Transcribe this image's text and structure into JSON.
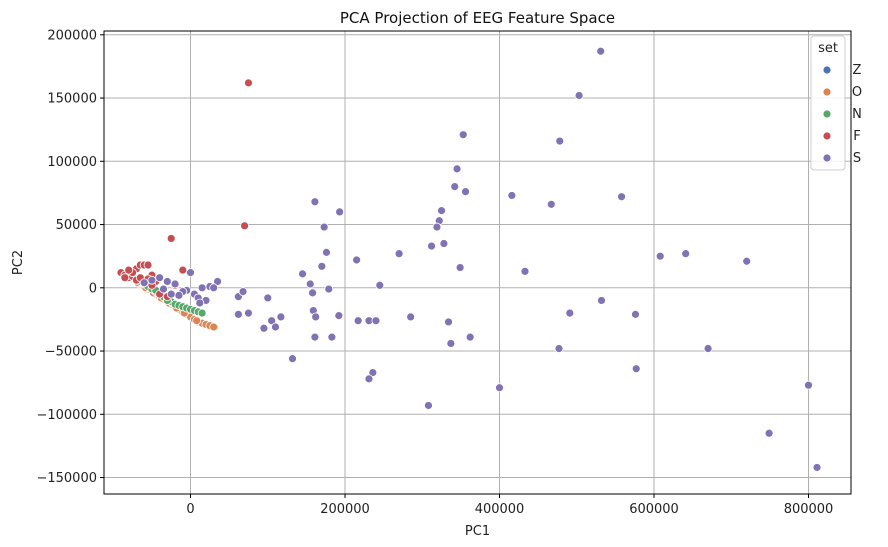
{
  "chart_data": {
    "type": "scatter",
    "title": "PCA Projection of EEG Feature Space",
    "xlabel": "PC1",
    "ylabel": "PC2",
    "xlim": [
      -112000,
      855000
    ],
    "ylim": [
      -163000,
      203000
    ],
    "xticks": [
      0,
      200000,
      400000,
      600000,
      800000
    ],
    "xtick_labels": [
      "0",
      "200000",
      "400000",
      "600000",
      "800000"
    ],
    "yticks": [
      -150000,
      -100000,
      -50000,
      0,
      50000,
      100000,
      150000,
      200000
    ],
    "ytick_labels": [
      "−150000",
      "−100000",
      "−50000",
      "0",
      "50000",
      "100000",
      "150000",
      "200000"
    ],
    "grid": true,
    "legend": {
      "title": "set",
      "placement": "top-right"
    },
    "series": [
      {
        "name": "Z",
        "color": "#4c72b0",
        "points": [
          [
            -60000,
            2000
          ],
          [
            -50000,
            0
          ],
          [
            -45000,
            -3000
          ],
          [
            -40000,
            -5000
          ],
          [
            -35000,
            -7000
          ],
          [
            -30000,
            -9000
          ],
          [
            -25000,
            -11000
          ],
          [
            -20000,
            -13000
          ],
          [
            -15000,
            -15000
          ],
          [
            -10000,
            -17000
          ],
          [
            -5000,
            -20000
          ],
          [
            0,
            -23000
          ],
          [
            5000,
            -21000
          ],
          [
            -55000,
            3000
          ],
          [
            -48000,
            1000
          ]
        ]
      },
      {
        "name": "O",
        "color": "#dd8452",
        "points": [
          [
            -85000,
            11000
          ],
          [
            -80000,
            9000
          ],
          [
            -75000,
            7000
          ],
          [
            -70000,
            5000
          ],
          [
            -65000,
            3000
          ],
          [
            -60000,
            1000
          ],
          [
            -55000,
            -1000
          ],
          [
            -50000,
            -3000
          ],
          [
            -45000,
            -5000
          ],
          [
            -40000,
            -7000
          ],
          [
            -35000,
            -9000
          ],
          [
            -30000,
            -11000
          ],
          [
            -25000,
            -13000
          ],
          [
            -20000,
            -15000
          ],
          [
            -15000,
            -17000
          ],
          [
            -10000,
            -19000
          ],
          [
            -5000,
            -21000
          ],
          [
            0,
            -23000
          ],
          [
            5000,
            -25000
          ],
          [
            10000,
            -27000
          ],
          [
            15000,
            -28000
          ],
          [
            20000,
            -29000
          ],
          [
            25000,
            -30000
          ],
          [
            30000,
            -31000
          ],
          [
            -78000,
            8000
          ],
          [
            -68000,
            4000
          ],
          [
            -58000,
            0
          ],
          [
            -48000,
            -4000
          ],
          [
            -38000,
            -8000
          ],
          [
            -28000,
            -12000
          ],
          [
            -18000,
            -16000
          ],
          [
            -8000,
            -20000
          ],
          [
            8000,
            -26000
          ]
        ]
      },
      {
        "name": "N",
        "color": "#55a868",
        "points": [
          [
            -65000,
            5000
          ],
          [
            -60000,
            3000
          ],
          [
            -55000,
            1000
          ],
          [
            -50000,
            -1000
          ],
          [
            -45000,
            -3000
          ],
          [
            -40000,
            -5000
          ],
          [
            -35000,
            -7000
          ],
          [
            -30000,
            -9000
          ],
          [
            -25000,
            -11000
          ],
          [
            -20000,
            -13000
          ],
          [
            -15000,
            -14000
          ],
          [
            -10000,
            -15000
          ],
          [
            -5000,
            -16000
          ],
          [
            0,
            -17000
          ],
          [
            5000,
            -18000
          ],
          [
            10000,
            -19000
          ],
          [
            15000,
            -20000
          ],
          [
            -45000,
            -2000
          ],
          [
            -30000,
            -10000
          ]
        ]
      },
      {
        "name": "F",
        "color": "#c44e52",
        "points": [
          [
            -90000,
            12000
          ],
          [
            -85000,
            10000
          ],
          [
            -80000,
            8000
          ],
          [
            -75000,
            9000
          ],
          [
            -70000,
            15000
          ],
          [
            -65000,
            18000
          ],
          [
            -60000,
            18000
          ],
          [
            -55000,
            18000
          ],
          [
            -50000,
            10000
          ],
          [
            -45000,
            5000
          ],
          [
            -70000,
            6000
          ],
          [
            -60000,
            5000
          ],
          [
            -75000,
            12000
          ],
          [
            -65000,
            8000
          ],
          [
            -80000,
            14000
          ],
          [
            -55000,
            7000
          ],
          [
            -50000,
            2000
          ],
          [
            -20000,
            2000
          ],
          [
            -25000,
            39000
          ],
          [
            -10000,
            14000
          ],
          [
            75000,
            162000
          ],
          [
            70000,
            49000
          ],
          [
            -40000,
            -5000
          ],
          [
            -30000,
            -7000
          ],
          [
            -85000,
            8000
          ]
        ]
      },
      {
        "name": "S",
        "color": "#8172b3",
        "points": [
          [
            531000,
            187000
          ],
          [
            503000,
            152000
          ],
          [
            478000,
            116000
          ],
          [
            353000,
            121000
          ],
          [
            345000,
            94000
          ],
          [
            342000,
            80000
          ],
          [
            356000,
            76000
          ],
          [
            416000,
            73000
          ],
          [
            558000,
            72000
          ],
          [
            467000,
            66000
          ],
          [
            161000,
            68000
          ],
          [
            193000,
            60000
          ],
          [
            325000,
            61000
          ],
          [
            322000,
            53000
          ],
          [
            319000,
            48000
          ],
          [
            173000,
            48000
          ],
          [
            312000,
            33000
          ],
          [
            328000,
            35000
          ],
          [
            641000,
            27000
          ],
          [
            608000,
            25000
          ],
          [
            720000,
            21000
          ],
          [
            215000,
            22000
          ],
          [
            270000,
            27000
          ],
          [
            176000,
            28000
          ],
          [
            145000,
            11000
          ],
          [
            170000,
            17000
          ],
          [
            433000,
            13000
          ],
          [
            349000,
            16000
          ],
          [
            155000,
            3000
          ],
          [
            245000,
            2000
          ],
          [
            158000,
            -4000
          ],
          [
            179000,
            -1000
          ],
          [
            532000,
            -10000
          ],
          [
            100000,
            -8000
          ],
          [
            62000,
            -7000
          ],
          [
            68000,
            -3000
          ],
          [
            62000,
            -21000
          ],
          [
            75000,
            -20000
          ],
          [
            159000,
            -18000
          ],
          [
            162000,
            -23000
          ],
          [
            192000,
            -22000
          ],
          [
            117000,
            -23000
          ],
          [
            105000,
            -26000
          ],
          [
            95000,
            -32000
          ],
          [
            110000,
            -31000
          ],
          [
            132000,
            -56000
          ],
          [
            183000,
            -39000
          ],
          [
            161000,
            -39000
          ],
          [
            217000,
            -26000
          ],
          [
            231000,
            -26000
          ],
          [
            240000,
            -26000
          ],
          [
            285000,
            -23000
          ],
          [
            334000,
            -27000
          ],
          [
            362000,
            -39000
          ],
          [
            337000,
            -44000
          ],
          [
            491000,
            -20000
          ],
          [
            576000,
            -21000
          ],
          [
            477000,
            -48000
          ],
          [
            670000,
            -48000
          ],
          [
            577000,
            -64000
          ],
          [
            236000,
            -67000
          ],
          [
            231000,
            -72000
          ],
          [
            400000,
            -79000
          ],
          [
            308000,
            -93000
          ],
          [
            800000,
            -77000
          ],
          [
            749000,
            -115000
          ],
          [
            811000,
            -142000
          ],
          [
            35000,
            5000
          ],
          [
            25000,
            1000
          ],
          [
            15000,
            0
          ],
          [
            5000,
            -5000
          ],
          [
            -5000,
            -2000
          ],
          [
            0,
            12000
          ],
          [
            -40000,
            8000
          ],
          [
            -30000,
            5000
          ],
          [
            -20000,
            3000
          ],
          [
            -10000,
            -3000
          ],
          [
            10000,
            -8000
          ],
          [
            20000,
            -10000
          ],
          [
            -50000,
            6000
          ],
          [
            -35000,
            -1000
          ],
          [
            -15000,
            -6000
          ],
          [
            30000,
            0
          ],
          [
            12000,
            -12000
          ],
          [
            -25000,
            -5000
          ],
          [
            -60000,
            4000
          ]
        ]
      }
    ]
  }
}
